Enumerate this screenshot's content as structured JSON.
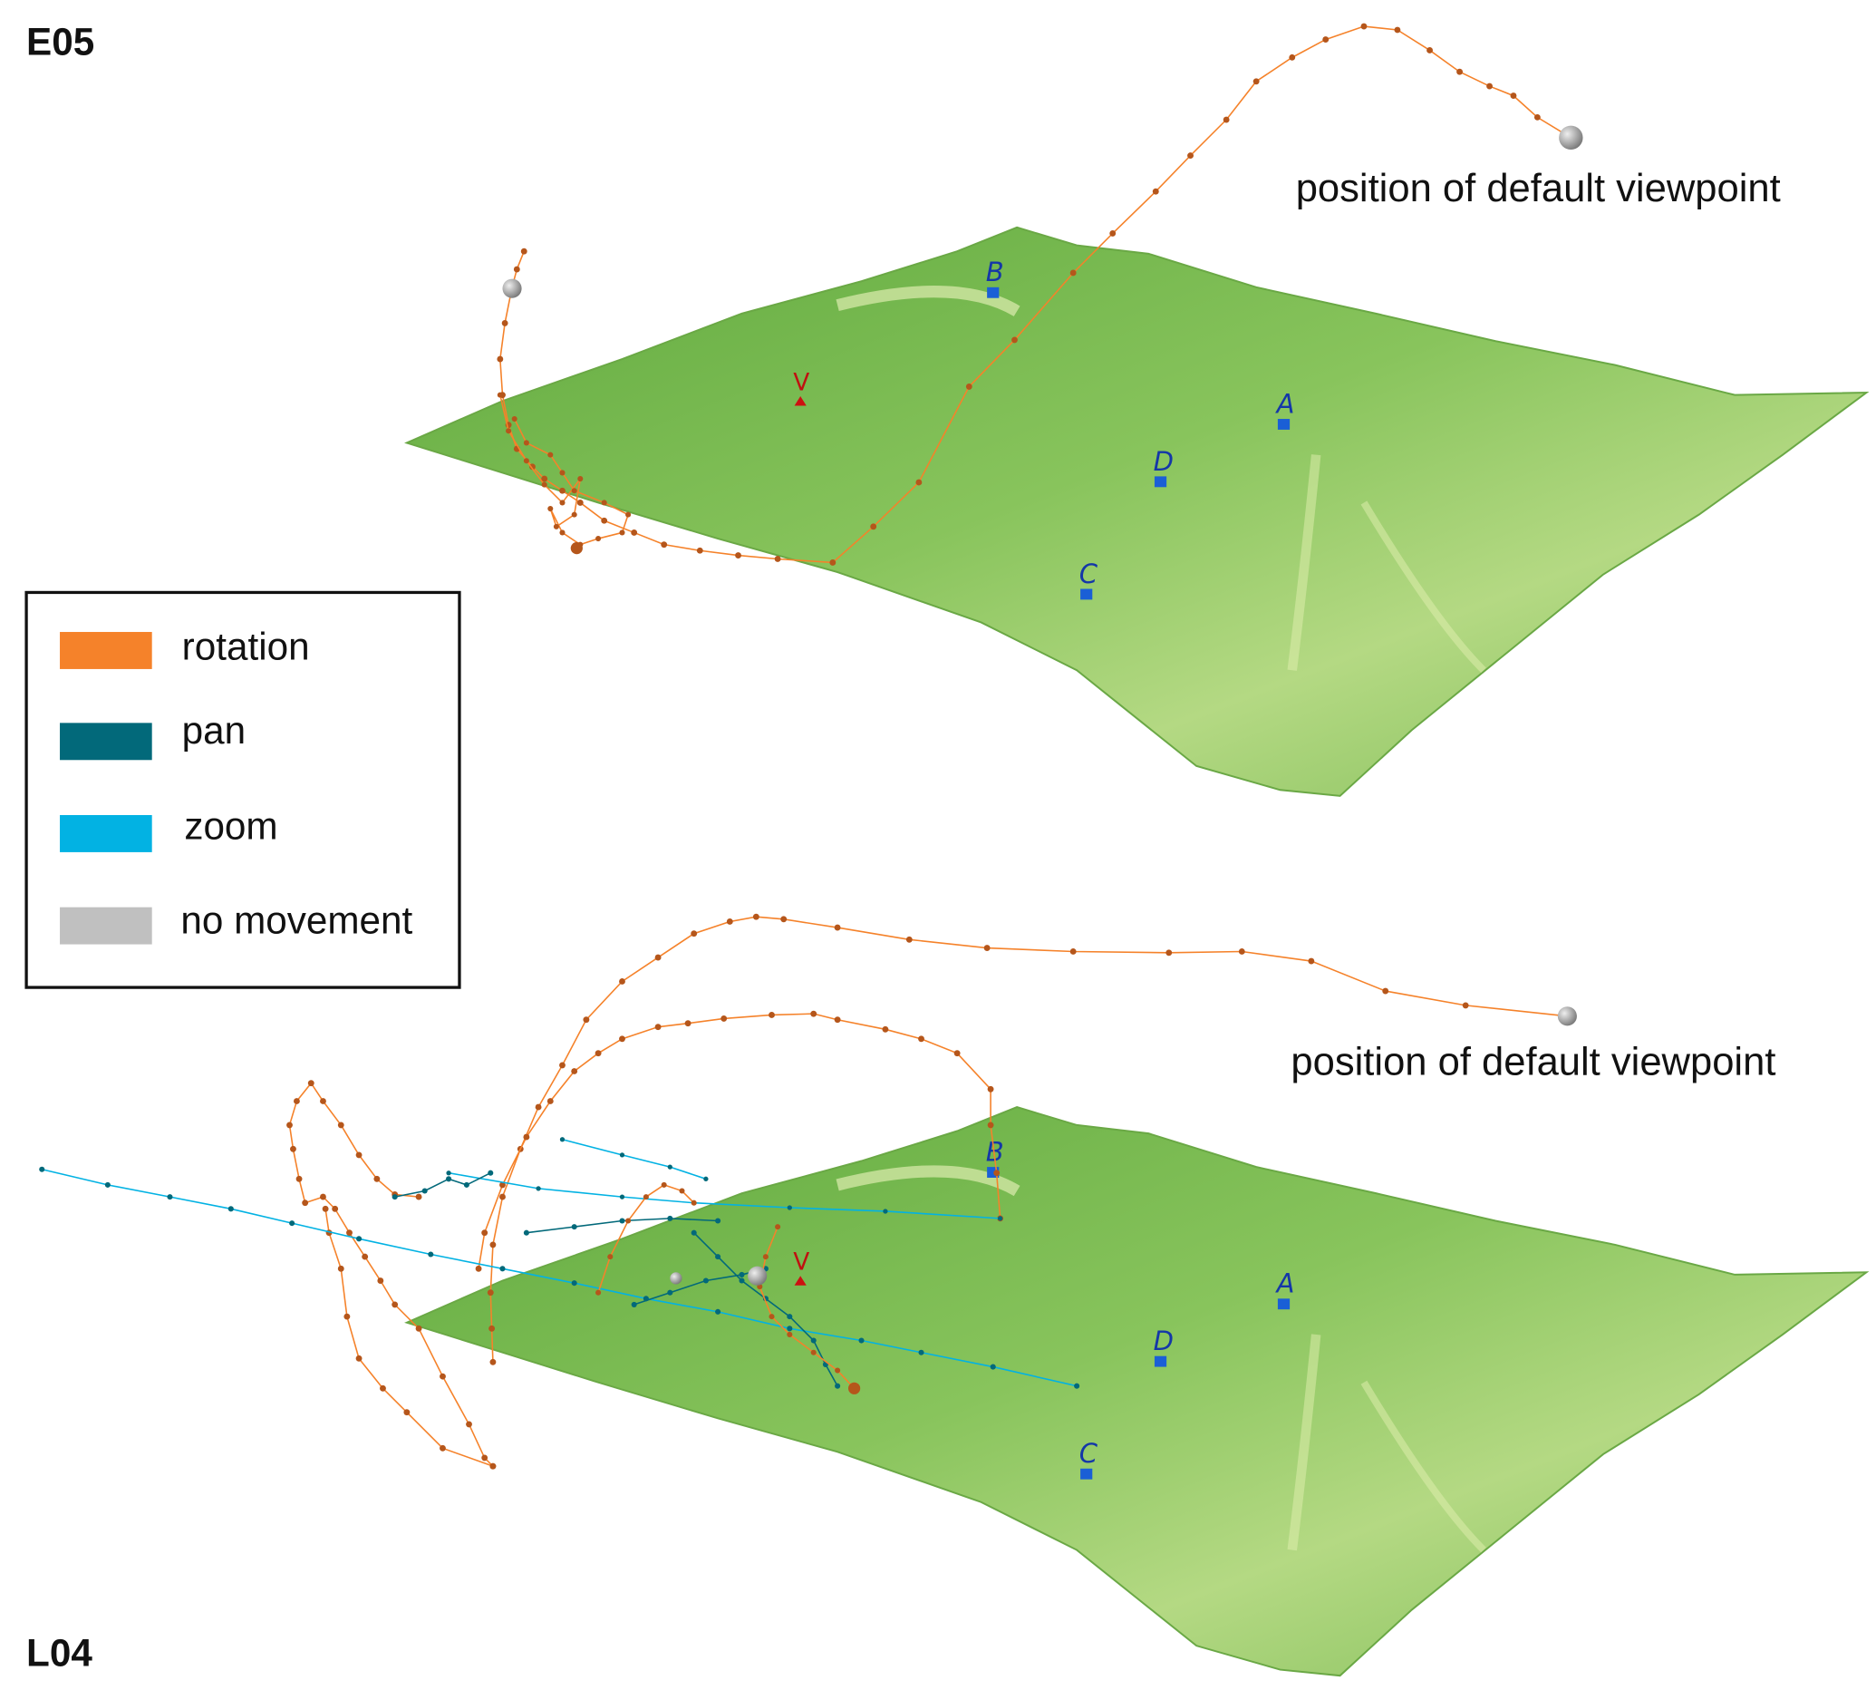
{
  "panels": [
    {
      "label": "E05",
      "default_viewpoint_note": "position of default viewpoint",
      "markers": [
        "A",
        "B",
        "C",
        "D",
        "V"
      ]
    },
    {
      "label": "L04",
      "default_viewpoint_note": "position of default viewpoint",
      "markers": [
        "A",
        "B",
        "C",
        "D",
        "V"
      ]
    }
  ],
  "legend": {
    "items": [
      {
        "label": "rotation",
        "color": "#f5822a"
      },
      {
        "label": "pan",
        "color": "#02697a"
      },
      {
        "label": "zoom",
        "color": "#02b2e3"
      },
      {
        "label": "no movement",
        "color": "#c0c0c0"
      }
    ]
  },
  "colors": {
    "terrain_dark": "#6db24a",
    "terrain_light": "#e6f0b0",
    "marker": "#1a5fd6",
    "viewpoint_marker": "#cc1111",
    "trajectory_point": "#b5561b"
  }
}
